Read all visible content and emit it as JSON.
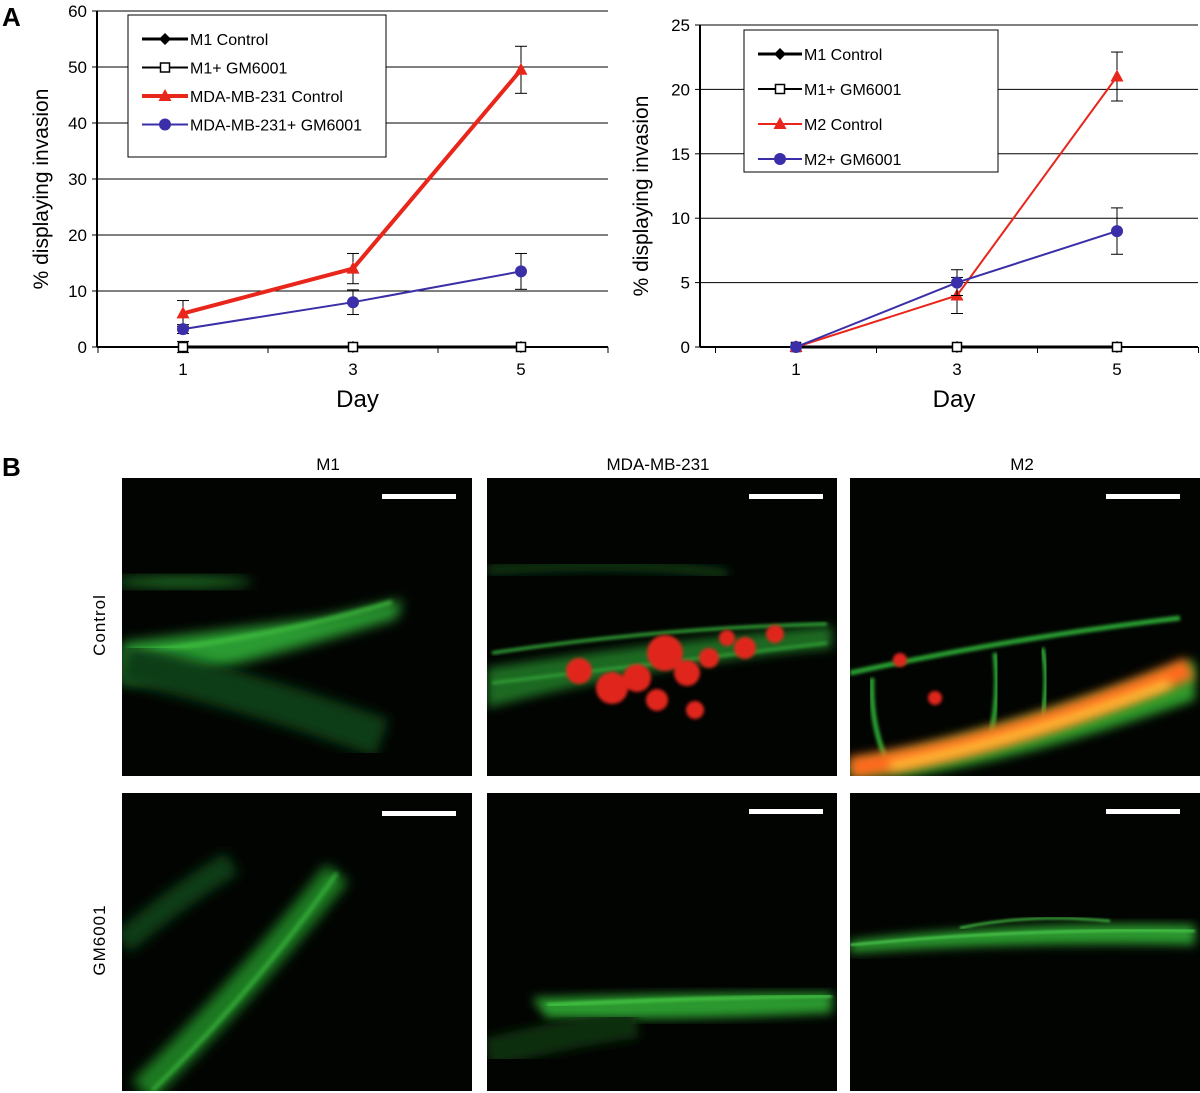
{
  "panels": {
    "a": "A",
    "b": "B"
  },
  "chart_data": [
    {
      "type": "line",
      "xlabel": "Day",
      "ylabel": "% displaying invasion",
      "categories": [
        1,
        3,
        5
      ],
      "ylim": [
        0,
        60
      ],
      "yticks": [
        0,
        10,
        20,
        30,
        40,
        50,
        60
      ],
      "grid": true,
      "legend_position": "top-left",
      "series": [
        {
          "name": "M1 Control",
          "values": [
            0,
            0,
            0
          ],
          "err": [
            1,
            0,
            0
          ],
          "color": "#000000",
          "marker": "diamond",
          "width": 3
        },
        {
          "name": "M1+ GM6001",
          "values": [
            0,
            0,
            0
          ],
          "err": [
            0,
            0,
            0
          ],
          "color": "#000000",
          "marker": "square-open",
          "width": 2
        },
        {
          "name": "MDA-MB-231 Control",
          "values": [
            6,
            14,
            49.5
          ],
          "err": [
            2.3,
            2.7,
            4.2
          ],
          "color": "#e8261b",
          "marker": "triangle",
          "width": 4
        },
        {
          "name": "MDA-MB-231+ GM6001",
          "values": [
            3.2,
            8,
            13.5
          ],
          "err": [
            0.8,
            2.2,
            3.2
          ],
          "color": "#3a2fa8",
          "marker": "circle",
          "width": 2
        }
      ]
    },
    {
      "type": "line",
      "xlabel": "Day",
      "ylabel": "% displaying invasion",
      "categories": [
        1,
        3,
        5
      ],
      "ylim": [
        0,
        25
      ],
      "yticks": [
        0,
        5,
        10,
        15,
        20,
        25
      ],
      "grid": true,
      "legend_position": "top-left",
      "series": [
        {
          "name": "M1 Control",
          "values": [
            0,
            0,
            0
          ],
          "err": [
            0,
            0,
            0
          ],
          "color": "#000000",
          "marker": "diamond",
          "width": 3
        },
        {
          "name": "M1+ GM6001",
          "values": [
            0,
            0,
            0
          ],
          "err": [
            0,
            0,
            0
          ],
          "color": "#000000",
          "marker": "square-open",
          "width": 2
        },
        {
          "name": "M2 Control",
          "values": [
            0,
            4,
            21
          ],
          "err": [
            0,
            1.4,
            1.9
          ],
          "color": "#e8261b",
          "marker": "triangle",
          "width": 2
        },
        {
          "name": "M2+ GM6001",
          "values": [
            0,
            5,
            9
          ],
          "err": [
            0,
            1,
            1.8
          ],
          "color": "#3a2fa8",
          "marker": "circle",
          "width": 2
        }
      ]
    }
  ],
  "micrographs": {
    "columns": [
      "M1",
      "MDA-MB-231",
      "M2"
    ],
    "rows": [
      "Control",
      "GM6001"
    ]
  }
}
